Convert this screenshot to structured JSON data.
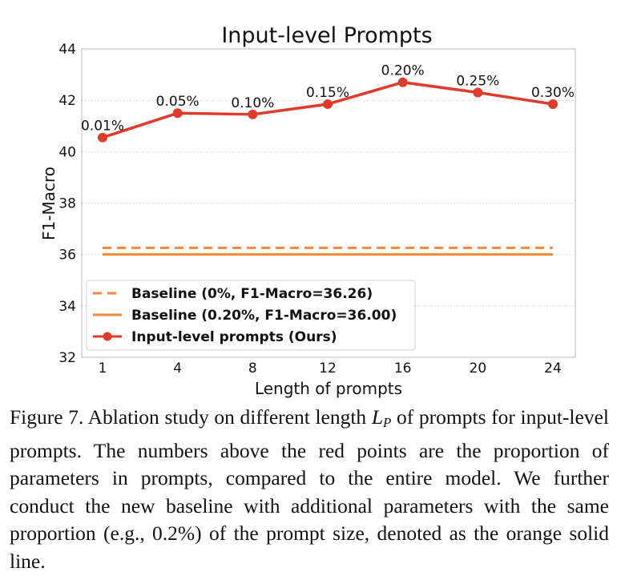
{
  "chart_data": {
    "type": "line",
    "title": "Input-level Prompts",
    "xlabel": "Length of prompts",
    "ylabel": "F1-Macro",
    "ylim": [
      32,
      44
    ],
    "yticks": [
      "32",
      "34",
      "36",
      "38",
      "40",
      "42",
      "44"
    ],
    "x_categories": [
      "1",
      "4",
      "8",
      "12",
      "16",
      "20",
      "24"
    ],
    "grid": true,
    "legend_position": "lower-left",
    "series": [
      {
        "name": "Input-level prompts (Ours)",
        "style": "line-marker",
        "color": "#e03a2c",
        "values": [
          40.55,
          41.5,
          41.45,
          41.85,
          42.7,
          42.3,
          41.85
        ],
        "point_labels": [
          "0.01%",
          "0.05%",
          "0.10%",
          "0.15%",
          "0.20%",
          "0.25%",
          "0.30%"
        ]
      }
    ],
    "baselines": [
      {
        "name": "Baseline (0%, F1-Macro=36.26)",
        "value": 36.26,
        "style": "dashed",
        "color": "#f0893e"
      },
      {
        "name": "Baseline (0.20%, F1-Macro=36.00)",
        "value": 36.0,
        "style": "solid",
        "color": "#f0893e"
      }
    ],
    "legend": [
      "Baseline (0%, F1-Macro=36.26)",
      "Baseline (0.20%, F1-Macro=36.00)",
      "Input-level prompts (Ours)"
    ]
  },
  "caption": {
    "prefix": "Figure 7.  Ablation study on different length ",
    "math_main": "L",
    "math_sub": "P",
    "suffix": " of prompts for input-level prompts. The numbers above the red points are the proportion of parameters in prompts, compared to the entire model. We further conduct the new baseline with additional parameters with the same proportion (e.g., 0.2%) of the prompt size, denoted as the orange solid line."
  }
}
